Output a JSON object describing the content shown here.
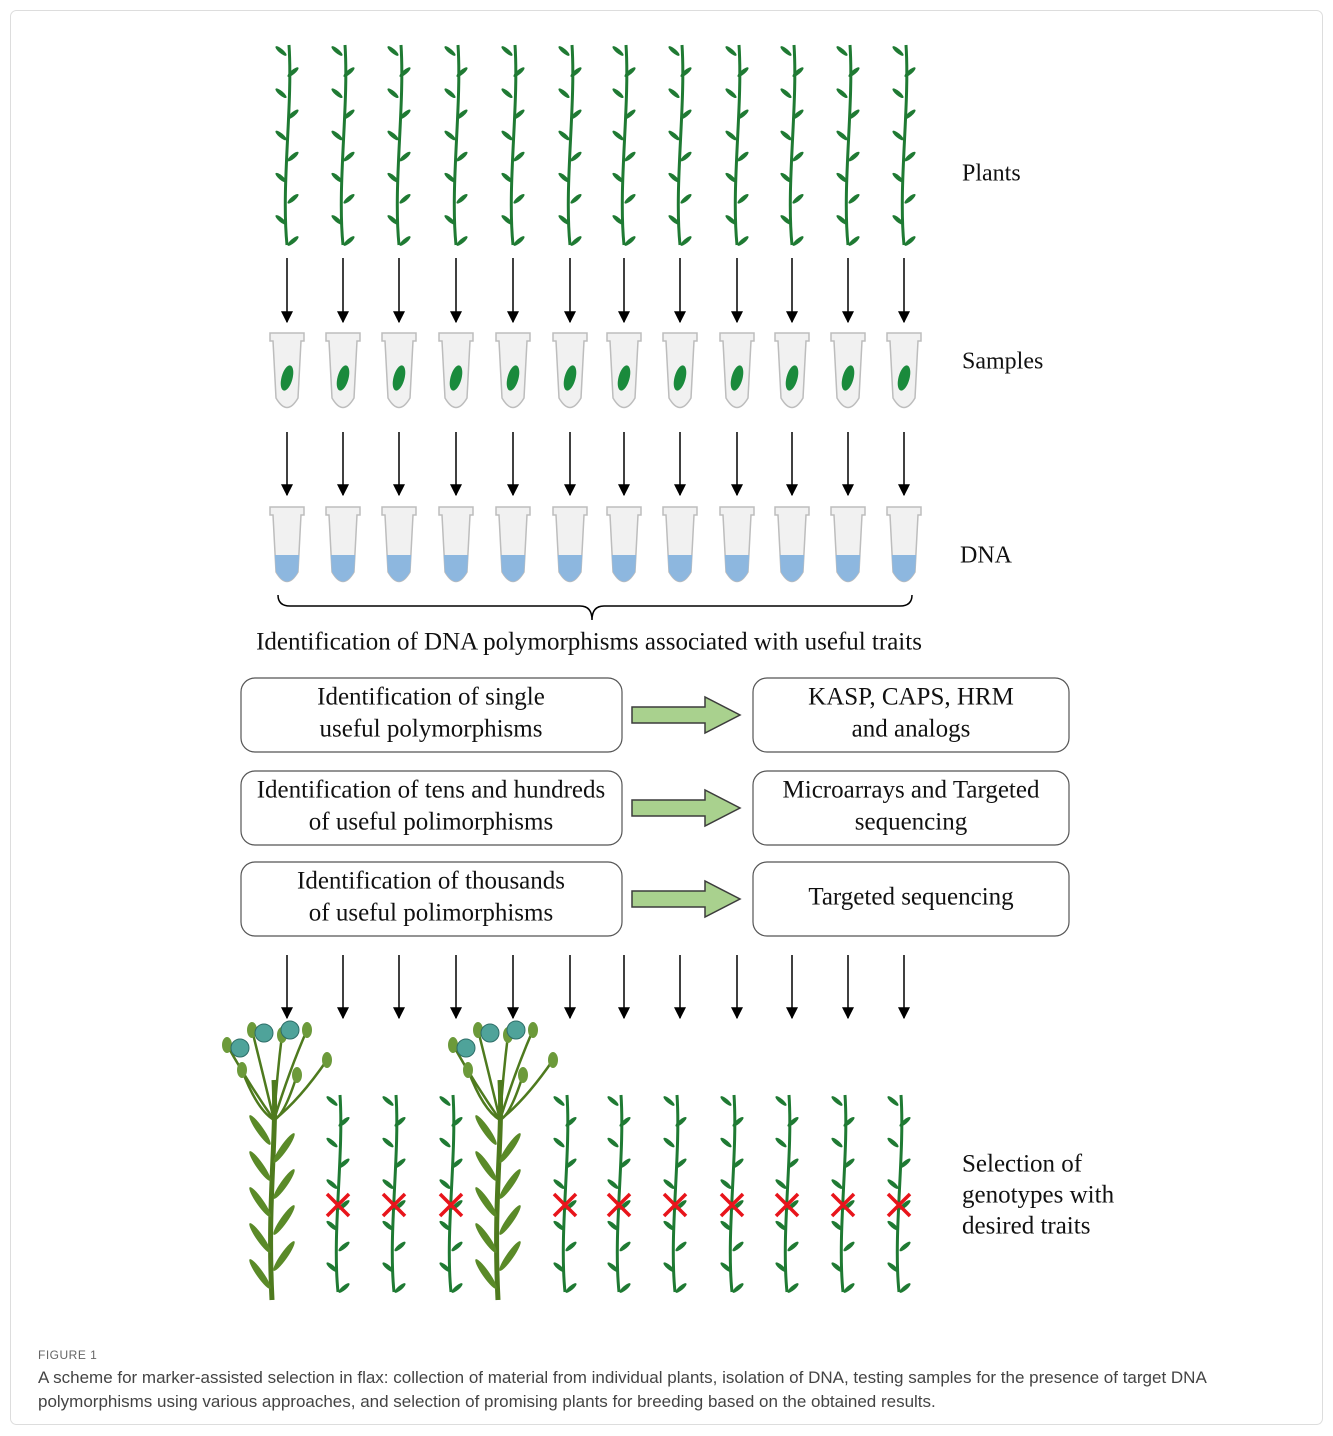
{
  "labels": {
    "plants": "Plants",
    "samples": "Samples",
    "dna": "DNA"
  },
  "heading": "Identification of DNA polymorphisms associated with useful traits",
  "approaches": [
    {
      "method": [
        "Identification of single",
        "useful polymorphisms"
      ],
      "tools": [
        "KASP, CAPS, HRM",
        "and analogs"
      ]
    },
    {
      "method": [
        "Identification of tens and hundreds",
        "of useful polimorphisms"
      ],
      "tools": [
        "Microarrays and Targeted",
        "sequencing"
      ]
    },
    {
      "method": [
        "Identification of thousands",
        "of useful polimorphisms"
      ],
      "tools": [
        "Targeted sequencing"
      ]
    }
  ],
  "selection": [
    "Selection of",
    "genotypes with",
    "desired traits"
  ],
  "caption": {
    "label": "FIGURE 1",
    "text": "A scheme for marker-assisted selection in flax: collection of material from individual plants, isolation of DNA, testing samples for the presence of target DNA polymorphisms using various approaches, and selection of promising plants for breeding based on the obtained results."
  }
}
